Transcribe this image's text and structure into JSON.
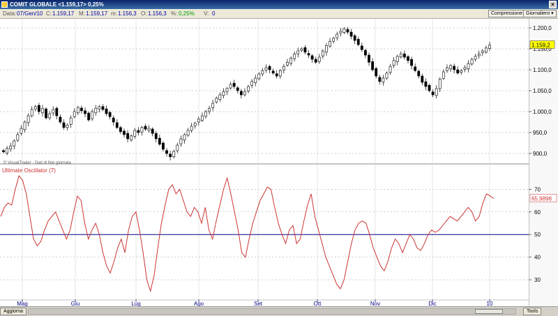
{
  "window": {
    "title": "COMIT GLOBALE <1.159,17> 0,25%",
    "close_label": "×"
  },
  "infobar": {
    "date_label": "Data:",
    "date_value": "07/Gen/10",
    "c_label": "C:",
    "c_value": "1.159,17",
    "m_label": "M:",
    "m_value": "1.159,17",
    "min_label": "m:",
    "min_value": "1.156,3",
    "o_label": "O:",
    "o_value": "1.156,3",
    "pct_label": "%:",
    "pct_value": "0,25%",
    "v_label": "V:",
    "v_value": "0",
    "compression_label": "Compressione",
    "period_value": "Giornaliero ▾"
  },
  "bottombar": {
    "refresh_label": "Aggiorna",
    "tools_label": "Tools"
  },
  "colors": {
    "up": "#ffffff",
    "down": "#000000",
    "oscillator": "#cc3333",
    "midline": "#000080",
    "grid": "#999999",
    "last_price_bg": "#ffff00"
  },
  "chart_data": [
    {
      "type": "candlestick",
      "title": "",
      "watermark": "© VisualTrader - Dati di fine giornata",
      "ylim": [
        880,
        1215
      ],
      "y_ticks": [
        900,
        950,
        1000,
        1050,
        1100,
        1150,
        1200
      ],
      "y_tick_labels": [
        "900,0",
        "950,0",
        "1.000,0",
        "1.050,0",
        "1.100,0",
        "1.150,0",
        "1.200,0"
      ],
      "last_price_label": "1.159,2",
      "last_price": 1159.2,
      "x_labels": [
        "Mag",
        "Giu",
        "Lug",
        "Ago",
        "Set",
        "Ott",
        "Nov",
        "Dic",
        "10"
      ],
      "close": [
        904,
        912,
        918,
        930,
        945,
        960,
        975,
        990,
        1005,
        1012,
        1000,
        1008,
        985,
        995,
        1005,
        990,
        975,
        962,
        968,
        985,
        1000,
        1010,
        1002,
        995,
        980,
        1000,
        1008,
        1012,
        1005,
        995,
        988,
        975,
        962,
        952,
        945,
        935,
        942,
        955,
        950,
        962,
        958,
        960,
        948,
        935,
        922,
        910,
        900,
        892,
        905,
        920,
        935,
        945,
        955,
        965,
        972,
        982,
        990,
        1000,
        1008,
        1020,
        1032,
        1040,
        1048,
        1055,
        1065,
        1060,
        1050,
        1040,
        1048,
        1060,
        1072,
        1080,
        1090,
        1098,
        1105,
        1100,
        1092,
        1085,
        1098,
        1108,
        1118,
        1128,
        1138,
        1145,
        1150,
        1142,
        1135,
        1125,
        1118,
        1130,
        1145,
        1158,
        1168,
        1175,
        1185,
        1192,
        1198,
        1190,
        1180,
        1170,
        1160,
        1148,
        1135,
        1118,
        1100,
        1085,
        1072,
        1080,
        1092,
        1108,
        1122,
        1132,
        1138,
        1130,
        1122,
        1110,
        1098,
        1085,
        1070,
        1060,
        1050,
        1040,
        1055,
        1078,
        1095,
        1105,
        1110,
        1100,
        1092,
        1098,
        1105,
        1115,
        1125,
        1132,
        1138,
        1145,
        1152,
        1159
      ]
    },
    {
      "type": "line",
      "series": [
        {
          "name": "Ultimate Oscillator (7)"
        }
      ],
      "ylim": [
        22,
        80
      ],
      "y_ticks": [
        30,
        40,
        50,
        60,
        70
      ],
      "y_tick_labels": [
        "30",
        "40",
        "50",
        "60",
        "70"
      ],
      "reference_line": 50,
      "last_value_label": "65,9898",
      "last_value": 65.99,
      "values": [
        58,
        62,
        64,
        63,
        70,
        76,
        74,
        68,
        58,
        48,
        45,
        47,
        52,
        56,
        58,
        60,
        56,
        52,
        48,
        52,
        60,
        67,
        65,
        55,
        48,
        52,
        55,
        50,
        42,
        36,
        33,
        38,
        44,
        48,
        42,
        52,
        58,
        60,
        52,
        42,
        30,
        25,
        32,
        44,
        55,
        63,
        70,
        72,
        68,
        70,
        65,
        60,
        58,
        62,
        60,
        55,
        62,
        52,
        48,
        56,
        63,
        70,
        75,
        68,
        60,
        52,
        42,
        40,
        48,
        55,
        60,
        65,
        68,
        71,
        70,
        62,
        55,
        50,
        46,
        52,
        54,
        46,
        48,
        56,
        63,
        68,
        58,
        52,
        46,
        40,
        36,
        32,
        28,
        26,
        30,
        38,
        46,
        52,
        55,
        56,
        55,
        50,
        44,
        40,
        36,
        34,
        38,
        44,
        48,
        46,
        42,
        46,
        50,
        48,
        44,
        43,
        46,
        50,
        52,
        51,
        52,
        54,
        56,
        58,
        57,
        56,
        58,
        60,
        62,
        60,
        56,
        58,
        64,
        68,
        67,
        66
      ]
    }
  ]
}
